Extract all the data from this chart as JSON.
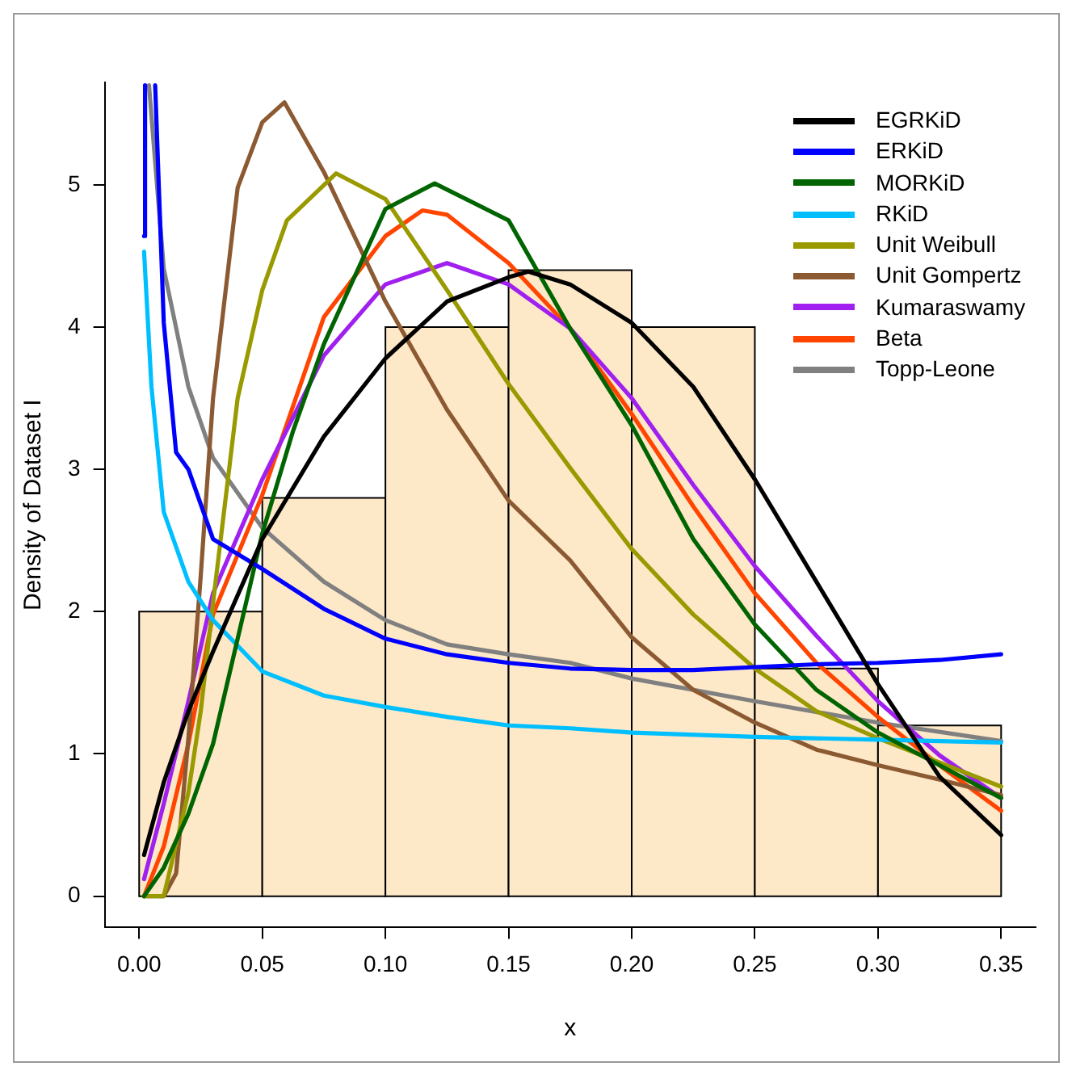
{
  "chart_data": {
    "type": "histogram",
    "xlabel": "x",
    "ylabel": "Density of Dataset I",
    "bins": [
      0,
      0.05,
      0.1,
      0.15,
      0.2,
      0.25,
      0.3,
      0.35
    ],
    "values": [
      2,
      2.8,
      4,
      4.4,
      4,
      1.6,
      1.2
    ],
    "color": "#fde8c8",
    "xlim": [
      -0.014,
      0.364
    ],
    "ylim": [
      -0.22,
      5.72
    ],
    "xticks": [
      {
        "value": 0,
        "label": "0.00"
      },
      {
        "value": 0.05,
        "label": "0.05"
      },
      {
        "value": 0.1,
        "label": "0.10"
      },
      {
        "value": 0.15,
        "label": "0.15"
      },
      {
        "value": 0.2,
        "label": "0.20"
      },
      {
        "value": 0.25,
        "label": "0.25"
      },
      {
        "value": 0.3,
        "label": "0.30"
      },
      {
        "value": 0.35,
        "label": "0.35"
      }
    ],
    "yticks": [
      0,
      1,
      2,
      3,
      4,
      5
    ],
    "grid": false,
    "legend": "top right",
    "line_style": "solid",
    "series": [
      {
        "name": "EGRKiD",
        "type": "line",
        "color": "#000000",
        "x": [
          0.002,
          0.01,
          0.02,
          0.03,
          0.05,
          0.075,
          0.1,
          0.125,
          0.15,
          0.158,
          0.175,
          0.2,
          0.225,
          0.25,
          0.275,
          0.3,
          0.325,
          0.35
        ],
        "values": [
          0.29,
          0.8,
          1.3,
          1.72,
          2.51,
          3.23,
          3.78,
          4.18,
          4.35,
          4.39,
          4.3,
          4.03,
          3.58,
          2.93,
          2.21,
          1.49,
          0.84,
          0.43
        ]
      },
      {
        "name": "ERKiD",
        "type": "line",
        "color": "#0000ff",
        "x": [
          0.002,
          0.0024,
          0.004,
          0.0065,
          0.01,
          0.015,
          0.02,
          0.03,
          0.05,
          0.075,
          0.1,
          0.125,
          0.15,
          0.175,
          0.2,
          0.225,
          0.25,
          0.275,
          0.3,
          0.325,
          0.35
        ],
        "values": [
          4.64,
          5.7,
          null,
          5.7,
          4.03,
          3.12,
          3.0,
          2.51,
          2.3,
          2.02,
          1.81,
          1.7,
          1.64,
          1.6,
          1.59,
          1.59,
          1.61,
          1.63,
          1.64,
          1.66,
          1.7
        ]
      },
      {
        "name": "MORKiD",
        "type": "line",
        "color": "#006400",
        "x": [
          0.002,
          0.01,
          0.02,
          0.03,
          0.05,
          0.0625,
          0.075,
          0.1,
          0.12,
          0.15,
          0.175,
          0.2,
          0.225,
          0.25,
          0.275,
          0.3,
          0.325,
          0.35
        ],
        "values": [
          0.0,
          0.2,
          0.58,
          1.07,
          2.55,
          3.27,
          3.88,
          4.83,
          5.01,
          4.75,
          3.99,
          3.31,
          2.51,
          1.91,
          1.45,
          1.15,
          0.92,
          0.69
        ]
      },
      {
        "name": "RKiD",
        "type": "line",
        "color": "#00bfff",
        "x": [
          0.002,
          0.005,
          0.01,
          0.02,
          0.03,
          0.05,
          0.075,
          0.1,
          0.125,
          0.15,
          0.175,
          0.2,
          0.25,
          0.3,
          0.35
        ],
        "values": [
          4.53,
          3.58,
          2.7,
          2.21,
          1.94,
          1.58,
          1.41,
          1.33,
          1.26,
          1.2,
          1.18,
          1.15,
          1.12,
          1.1,
          1.08
        ]
      },
      {
        "name": "Unit Weibull",
        "type": "line",
        "color": "#999900",
        "x": [
          0.002,
          0.01,
          0.02,
          0.025,
          0.03,
          0.04,
          0.05,
          0.06,
          0.08,
          0.1,
          0.125,
          0.15,
          0.175,
          0.2,
          0.225,
          0.25,
          0.275,
          0.3,
          0.325,
          0.35
        ],
        "values": [
          0.0,
          0.0,
          0.73,
          1.3,
          2.06,
          3.5,
          4.26,
          4.75,
          5.08,
          4.9,
          4.26,
          3.6,
          3.01,
          2.44,
          1.98,
          1.6,
          1.3,
          1.11,
          0.94,
          0.77
        ]
      },
      {
        "name": "Unit Gompertz",
        "type": "line",
        "color": "#8c5a32",
        "x": [
          0.002,
          0.01,
          0.015,
          0.02,
          0.025,
          0.03,
          0.04,
          0.05,
          0.059,
          0.075,
          0.1,
          0.125,
          0.15,
          0.175,
          0.2,
          0.225,
          0.25,
          0.275,
          0.3,
          0.325,
          0.35
        ],
        "values": [
          0.0,
          0.0,
          0.16,
          1.11,
          2.25,
          3.5,
          4.98,
          5.44,
          5.58,
          5.09,
          4.18,
          3.42,
          2.78,
          2.36,
          1.82,
          1.45,
          1.22,
          1.03,
          0.92,
          0.82,
          0.71
        ]
      },
      {
        "name": "Kumaraswamy",
        "type": "line",
        "color": "#a020f0",
        "x": [
          0.002,
          0.01,
          0.02,
          0.03,
          0.05,
          0.075,
          0.1,
          0.125,
          0.15,
          0.175,
          0.2,
          0.225,
          0.25,
          0.275,
          0.3,
          0.325,
          0.35
        ],
        "values": [
          0.12,
          0.65,
          1.37,
          2.13,
          2.93,
          3.8,
          4.3,
          4.45,
          4.3,
          3.99,
          3.5,
          2.89,
          2.32,
          1.83,
          1.37,
          0.99,
          0.69
        ]
      },
      {
        "name": "Beta",
        "type": "line",
        "color": "#ff4500",
        "x": [
          0.002,
          0.01,
          0.02,
          0.03,
          0.05,
          0.075,
          0.1,
          0.115,
          0.125,
          0.15,
          0.175,
          0.2,
          0.225,
          0.25,
          0.275,
          0.3,
          0.325,
          0.35
        ],
        "values": [
          0.0,
          0.35,
          1.07,
          1.98,
          2.82,
          4.07,
          4.64,
          4.82,
          4.79,
          4.45,
          3.99,
          3.39,
          2.74,
          2.13,
          1.64,
          1.26,
          0.92,
          0.6
        ]
      },
      {
        "name": "Topp-Leone",
        "type": "line",
        "color": "#808080",
        "x": [
          0.004,
          0.01,
          0.02,
          0.03,
          0.05,
          0.075,
          0.1,
          0.125,
          0.15,
          0.175,
          0.2,
          0.25,
          0.3,
          0.35
        ],
        "values": [
          5.7,
          4.41,
          3.58,
          3.08,
          2.59,
          2.21,
          1.94,
          1.77,
          1.7,
          1.64,
          1.53,
          1.37,
          1.22,
          1.09
        ]
      }
    ]
  }
}
